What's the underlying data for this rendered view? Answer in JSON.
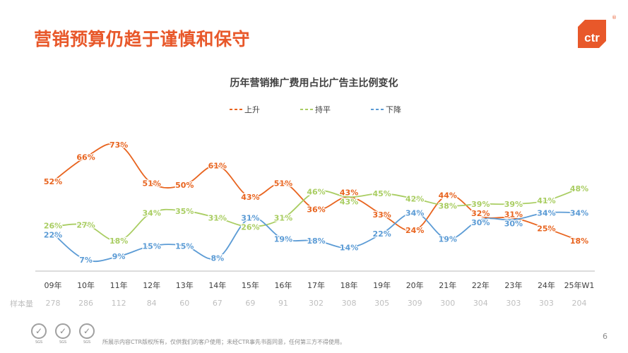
{
  "header": {
    "title": "营销预算仍趋于谨慎和保守",
    "logo_text": "ctr",
    "logo_mark": "®"
  },
  "colors": {
    "up": "#e8641f",
    "flat": "#a9cd62",
    "down": "#5b9bd5",
    "accent": "#e8582a"
  },
  "chart_data": {
    "type": "line",
    "title": "历年营销推广费用占比广告主比例变化",
    "legend_position": "top",
    "categories": [
      "09年",
      "10年",
      "11年",
      "12年",
      "13年",
      "14年",
      "15年",
      "16年",
      "17年",
      "18年",
      "19年",
      "20年",
      "21年",
      "22年",
      "23年",
      "24年",
      "25年W1"
    ],
    "series": [
      {
        "name": "上升",
        "key": "up",
        "values": [
          52,
          66,
          73,
          51,
          50,
          61,
          43,
          51,
          36,
          43,
          33,
          24,
          44,
          32,
          31,
          25,
          18
        ]
      },
      {
        "name": "持平",
        "key": "flat",
        "values": [
          26,
          27,
          18,
          34,
          35,
          31,
          26,
          31,
          46,
          43,
          45,
          42,
          38,
          39,
          39,
          41,
          48
        ]
      },
      {
        "name": "下降",
        "key": "down",
        "values": [
          22,
          7,
          9,
          15,
          15,
          8,
          31,
          19,
          18,
          14,
          22,
          34,
          19,
          30,
          30,
          34,
          34
        ]
      }
    ],
    "value_suffix": "%",
    "sample_label": "样本量",
    "sample_sizes": [
      278,
      286,
      112,
      84,
      60,
      67,
      69,
      91,
      302,
      308,
      305,
      309,
      300,
      304,
      303,
      303,
      204
    ],
    "grid": false
  },
  "footer": {
    "sgs_label": "SGS",
    "copyright": "所展示内容CTR版权所有，仅供我们的客户使用；未经CTR事先书面同意，任何第三方不得使用。",
    "page_number": "6"
  }
}
